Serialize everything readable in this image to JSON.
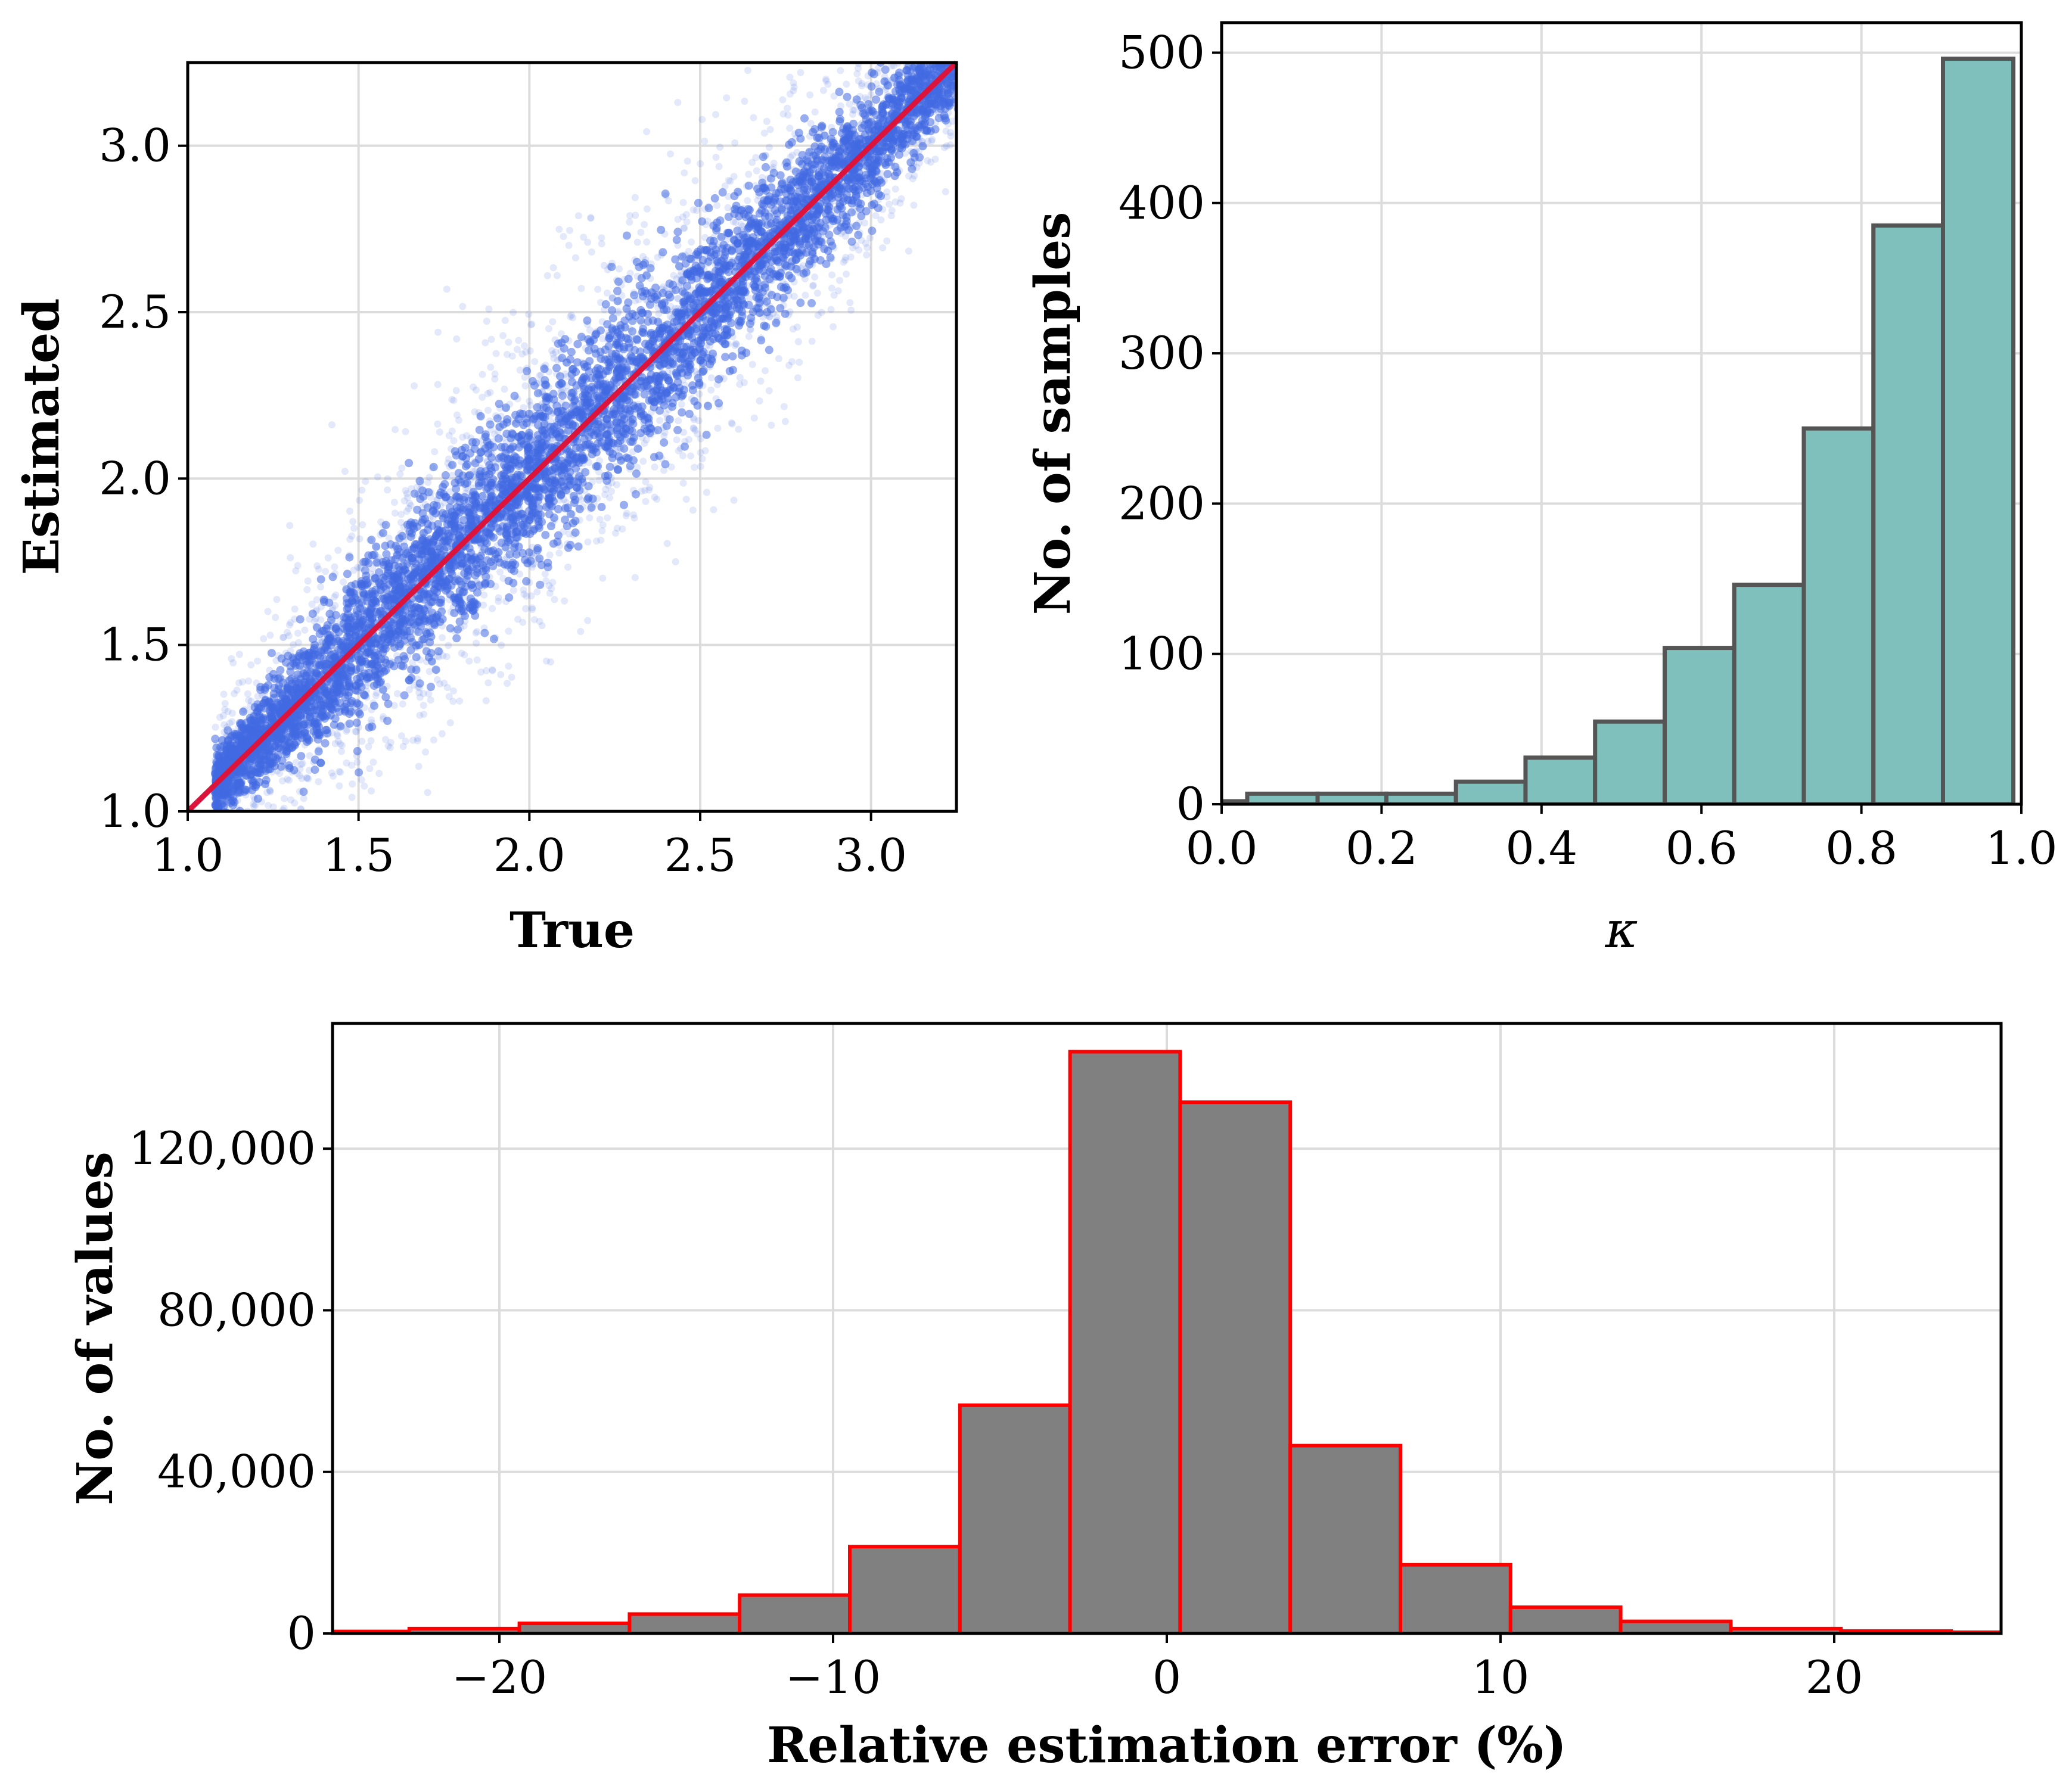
{
  "chart_data": [
    {
      "type": "scatter",
      "name": "true-vs-estimated",
      "xlabel": "True",
      "ylabel": "Estimated",
      "xlim": [
        1.0,
        3.25
      ],
      "ylim": [
        1.0,
        3.25
      ],
      "xticks": [
        1.0,
        1.5,
        2.0,
        2.5,
        3.0
      ],
      "yticks": [
        1.0,
        1.5,
        2.0,
        2.5,
        3.0
      ],
      "xtick_labels": [
        "1.0",
        "1.5",
        "2.0",
        "2.5",
        "3.0"
      ],
      "ytick_labels": [
        "1.0",
        "1.5",
        "2.0",
        "2.5",
        "3.0"
      ],
      "grid": true,
      "point_color": "#4169e1",
      "reference_line": {
        "from": [
          1.0,
          1.0
        ],
        "to": [
          3.25,
          3.25
        ],
        "color": "#dc143c"
      },
      "band_center_x": [
        1.1,
        1.3,
        1.5,
        1.75,
        2.0,
        2.25,
        2.5,
        2.75,
        3.0,
        3.2
      ],
      "band_spread_y": [
        0.12,
        0.2,
        0.27,
        0.3,
        0.3,
        0.3,
        0.28,
        0.25,
        0.2,
        0.15
      ]
    },
    {
      "type": "bar",
      "name": "kappa-histogram",
      "xlabel": "κ",
      "ylabel": "No. of samples",
      "xlim": [
        0.0,
        1.0
      ],
      "ylim": [
        0,
        520
      ],
      "xticks": [
        0.0,
        0.2,
        0.4,
        0.6,
        0.8,
        1.0
      ],
      "yticks": [
        0,
        100,
        200,
        300,
        400,
        500
      ],
      "xtick_labels": [
        "0.0",
        "0.2",
        "0.4",
        "0.6",
        "0.8",
        "1.0"
      ],
      "ytick_labels": [
        "0",
        "100",
        "200",
        "300",
        "400",
        "500"
      ],
      "grid": true,
      "fill_color": "#7fbfbc",
      "edge_color": "#555555",
      "bins": [
        {
          "x0": -0.06,
          "x1": 0.032,
          "value": 2
        },
        {
          "x0": 0.032,
          "x1": 0.12,
          "value": 7
        },
        {
          "x0": 0.12,
          "x1": 0.206,
          "value": 7
        },
        {
          "x0": 0.206,
          "x1": 0.293,
          "value": 7
        },
        {
          "x0": 0.293,
          "x1": 0.38,
          "value": 15
        },
        {
          "x0": 0.38,
          "x1": 0.467,
          "value": 31
        },
        {
          "x0": 0.467,
          "x1": 0.554,
          "value": 55
        },
        {
          "x0": 0.554,
          "x1": 0.641,
          "value": 104
        },
        {
          "x0": 0.641,
          "x1": 0.728,
          "value": 146
        },
        {
          "x0": 0.728,
          "x1": 0.815,
          "value": 250
        },
        {
          "x0": 0.815,
          "x1": 0.902,
          "value": 385
        },
        {
          "x0": 0.902,
          "x1": 0.99,
          "value": 496
        }
      ]
    },
    {
      "type": "bar",
      "name": "relative-error-histogram",
      "xlabel": "Relative estimation error (%)",
      "ylabel": "No. of values",
      "xlim": [
        -25,
        25
      ],
      "ylim": [
        0,
        151000
      ],
      "xticks": [
        -20,
        -10,
        0,
        10,
        20
      ],
      "yticks": [
        0,
        40000,
        80000,
        120000
      ],
      "xtick_labels": [
        "−20",
        "−10",
        "0",
        "10",
        "20"
      ],
      "ytick_labels": [
        "0",
        "40,000",
        "80,000",
        "120,000"
      ],
      "grid": true,
      "fill_color": "#808080",
      "edge_color": "#ff0000",
      "bins": [
        {
          "x0": -26.0,
          "x1": -22.7,
          "value": 500
        },
        {
          "x0": -22.7,
          "x1": -19.4,
          "value": 1200
        },
        {
          "x0": -19.4,
          "x1": -16.1,
          "value": 2500
        },
        {
          "x0": -16.1,
          "x1": -12.8,
          "value": 4800
        },
        {
          "x0": -12.8,
          "x1": -9.5,
          "value": 9500
        },
        {
          "x0": -9.5,
          "x1": -6.2,
          "value": 21500
        },
        {
          "x0": -6.2,
          "x1": -2.9,
          "value": 56500
        },
        {
          "x0": -2.9,
          "x1": 0.4,
          "value": 144000
        },
        {
          "x0": 0.4,
          "x1": 3.7,
          "value": 131500
        },
        {
          "x0": 3.7,
          "x1": 7.0,
          "value": 46500
        },
        {
          "x0": 7.0,
          "x1": 10.3,
          "value": 17000
        },
        {
          "x0": 10.3,
          "x1": 13.6,
          "value": 6500
        },
        {
          "x0": 13.6,
          "x1": 16.9,
          "value": 3000
        },
        {
          "x0": 16.9,
          "x1": 20.2,
          "value": 1200
        },
        {
          "x0": 20.2,
          "x1": 23.5,
          "value": 600
        },
        {
          "x0": 23.5,
          "x1": 26.8,
          "value": 300
        }
      ]
    }
  ]
}
